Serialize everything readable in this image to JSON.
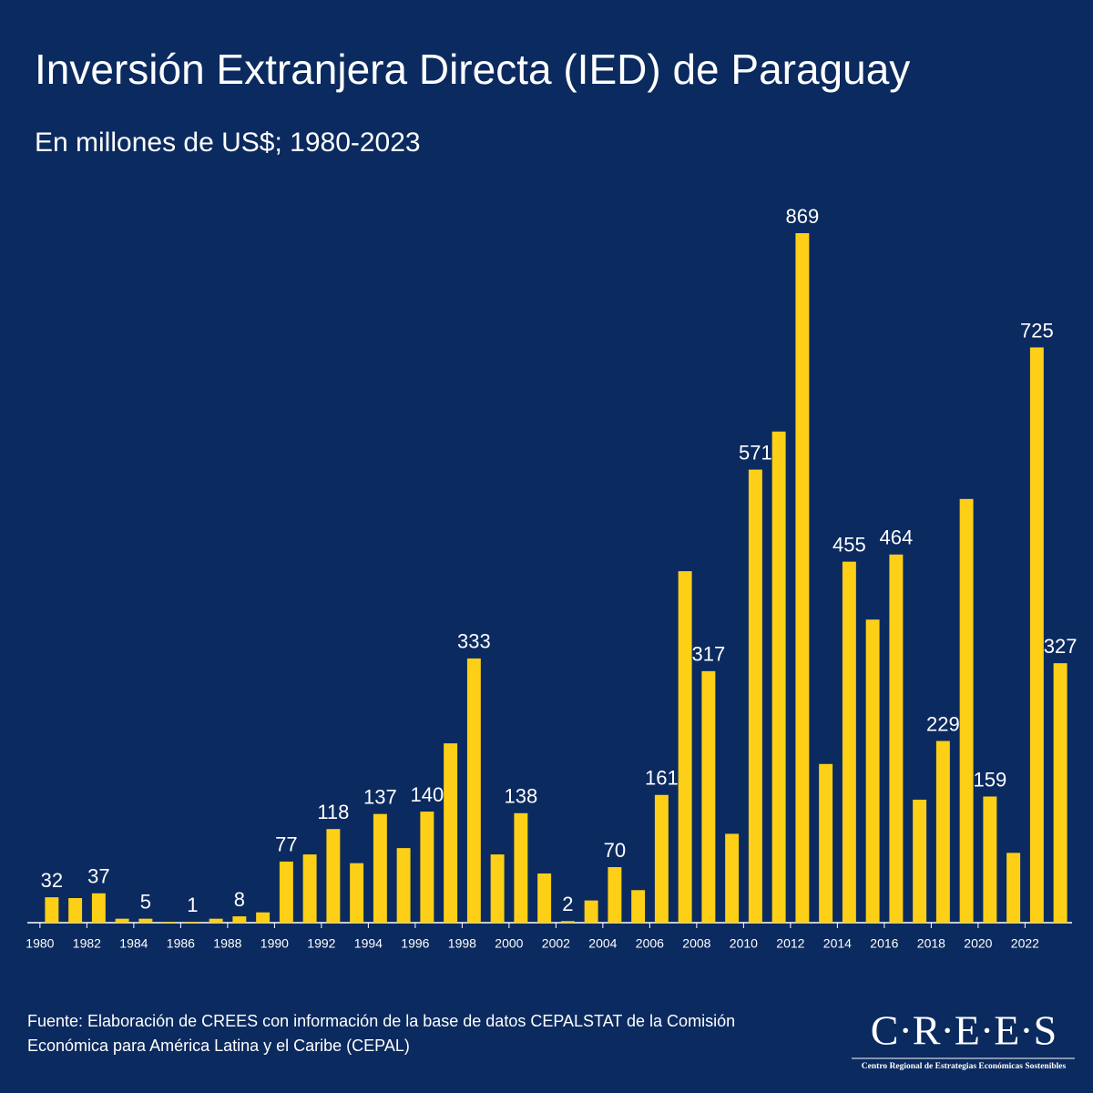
{
  "chart_data": {
    "type": "bar",
    "title": "Inversión Extranjera Directa (IED) de Paraguay",
    "subtitle": "En millones de US$; 1980-2023",
    "source": "Fuente: Elaboración de CREES con información de la base de datos CEPALSTAT de la Comisión",
    "source_2": "Económica para América Latina y el Caribe (CEPAL)",
    "logo": "C·R·E·E·S",
    "logo_subtitle": "Centro Regional de Estrategias Económicas Sostenibles",
    "x": [
      1980,
      1981,
      1982,
      1983,
      1984,
      1985,
      1986,
      1987,
      1988,
      1989,
      1990,
      1991,
      1992,
      1993,
      1994,
      1995,
      1996,
      1997,
      1998,
      1999,
      2000,
      2001,
      2002,
      2003,
      2004,
      2005,
      2006,
      2007,
      2008,
      2009,
      2010,
      2011,
      2012,
      2013,
      2014,
      2015,
      2016,
      2017,
      2018,
      2019,
      2020,
      2021,
      2022,
      2023
    ],
    "values": [
      32,
      31,
      37,
      5,
      5,
      1,
      1,
      5,
      8,
      13,
      77,
      86,
      118,
      75,
      137,
      94,
      140,
      226,
      333,
      86,
      138,
      62,
      2,
      28,
      70,
      41,
      161,
      443,
      317,
      112,
      571,
      619,
      869,
      200,
      455,
      382,
      464,
      155,
      229,
      534,
      159,
      88,
      725,
      327
    ],
    "data_labels": [
      true,
      false,
      true,
      false,
      true,
      false,
      true,
      false,
      true,
      false,
      true,
      false,
      true,
      false,
      true,
      false,
      true,
      false,
      true,
      false,
      true,
      false,
      true,
      false,
      true,
      false,
      true,
      false,
      true,
      false,
      true,
      false,
      true,
      false,
      true,
      false,
      true,
      false,
      true,
      false,
      true,
      false,
      true,
      true
    ],
    "color": "#fdd017",
    "xlim": [
      1979.5,
      2023.5
    ],
    "xticks": [
      1980,
      1982,
      1984,
      1986,
      1988,
      1990,
      1992,
      1994,
      1996,
      1998,
      2000,
      2002,
      2004,
      2006,
      2008,
      2010,
      2012,
      2014,
      2016,
      2018,
      2020,
      2022
    ],
    "ylim": [
      0,
      900
    ],
    "grid": false
  }
}
